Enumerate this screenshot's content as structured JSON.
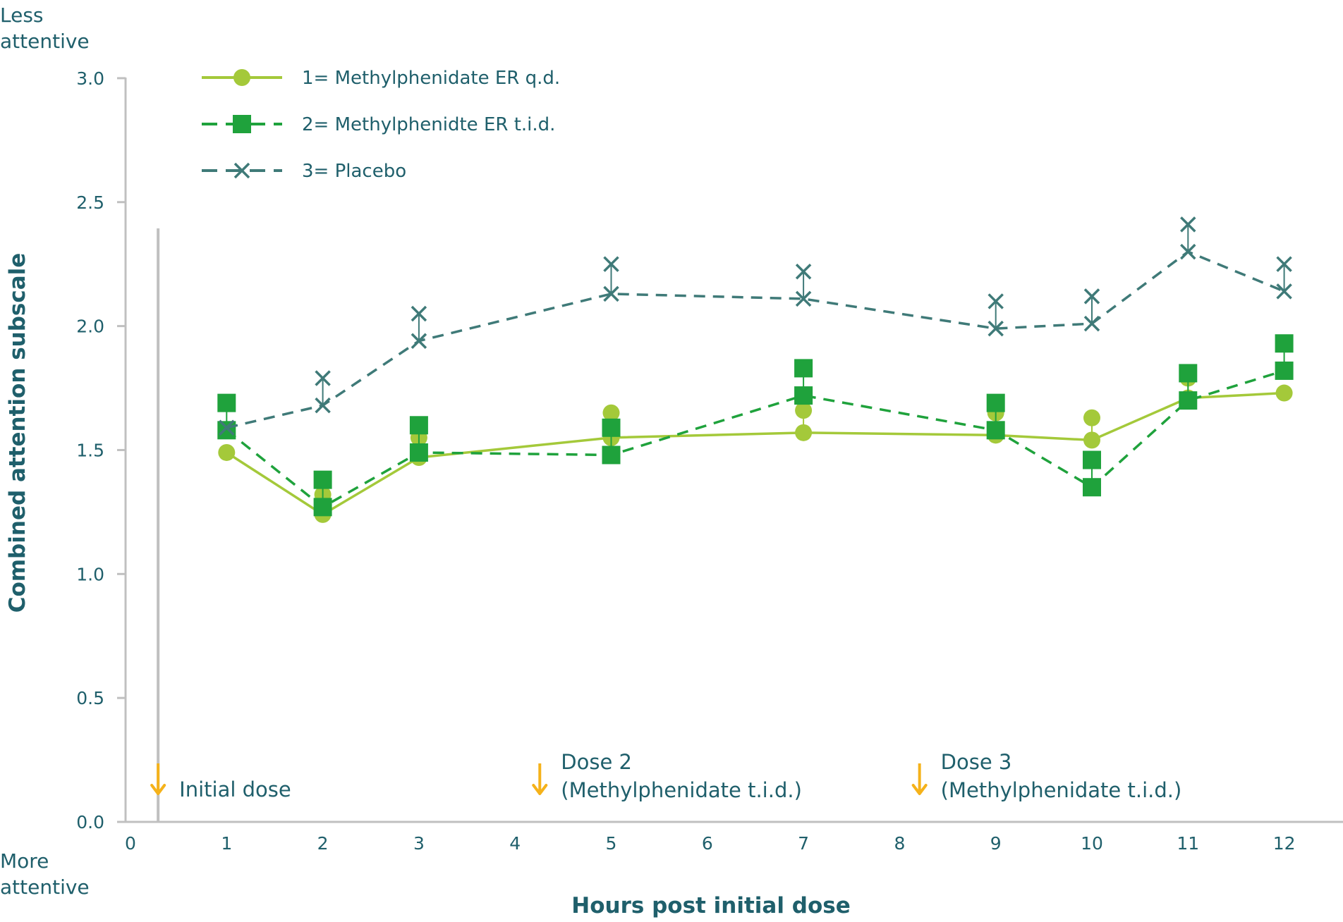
{
  "chart_data": {
    "type": "line",
    "title": "",
    "xlabel": "Hours post initial dose",
    "ylabel": "Combined attention subscale",
    "xlim": [
      0,
      12.5
    ],
    "ylim": [
      0,
      3.0
    ],
    "x_ticks": [
      "0",
      "1",
      "2",
      "3",
      "4",
      "5",
      "6",
      "7",
      "8",
      "9",
      "10",
      "11",
      "12"
    ],
    "y_ticks": [
      "0.0",
      "0.5",
      "1.0",
      "1.5",
      "2.0",
      "2.5",
      "3.0"
    ],
    "y_top_label": [
      "Less",
      "attentive"
    ],
    "y_bottom_label": [
      "More",
      "attentive"
    ],
    "legend_position": "top-left",
    "grid": false,
    "series": [
      {
        "name": "1= Methylphenidate ER q.d.",
        "marker": "circle",
        "dash": "solid",
        "color": "#a4c93a",
        "x": [
          1,
          2,
          3,
          5,
          7,
          9,
          10,
          11,
          12
        ],
        "values": [
          1.49,
          1.24,
          1.47,
          1.55,
          1.57,
          1.56,
          1.54,
          1.71,
          1.73
        ],
        "error_upper": [
          1.49,
          1.32,
          1.55,
          1.65,
          1.66,
          1.65,
          1.63,
          1.79,
          1.73
        ]
      },
      {
        "name": "2= Methylphenidte ER t.i.d.",
        "marker": "square",
        "dash": "dashed",
        "color": "#1fa23c",
        "x": [
          1,
          2,
          3,
          5,
          7,
          9,
          10,
          11,
          12
        ],
        "values": [
          1.58,
          1.27,
          1.49,
          1.48,
          1.72,
          1.58,
          1.35,
          1.7,
          1.82
        ],
        "error_upper": [
          1.69,
          1.38,
          1.6,
          1.59,
          1.83,
          1.69,
          1.46,
          1.81,
          1.93
        ]
      },
      {
        "name": "3= Placebo",
        "marker": "x",
        "dash": "dashed",
        "color": "#3f7a78",
        "x": [
          1,
          2,
          3,
          5,
          7,
          9,
          10,
          11,
          12
        ],
        "values": [
          1.59,
          1.68,
          1.94,
          2.13,
          2.11,
          1.99,
          2.01,
          2.3,
          2.14
        ],
        "error_upper": [
          1.59,
          1.79,
          2.05,
          2.25,
          2.22,
          2.1,
          2.12,
          2.41,
          2.25
        ]
      }
    ],
    "annotations": [
      {
        "x": 0.28,
        "lines": [
          "Initial dose"
        ],
        "arrow_color": "#f5b21a"
      },
      {
        "x": 4.25,
        "lines": [
          "Dose 2",
          "(Methylphenidate t.i.d.)"
        ],
        "arrow_color": "#f5b21a"
      },
      {
        "x": 8.2,
        "lines": [
          "Dose 3",
          "(Methylphenidate t.i.d.)"
        ],
        "arrow_color": "#f5b21a"
      }
    ],
    "initial_dose_line_x": 0.28,
    "axis_color": "#c0c0c0",
    "text_color": "#1f5f6b"
  }
}
